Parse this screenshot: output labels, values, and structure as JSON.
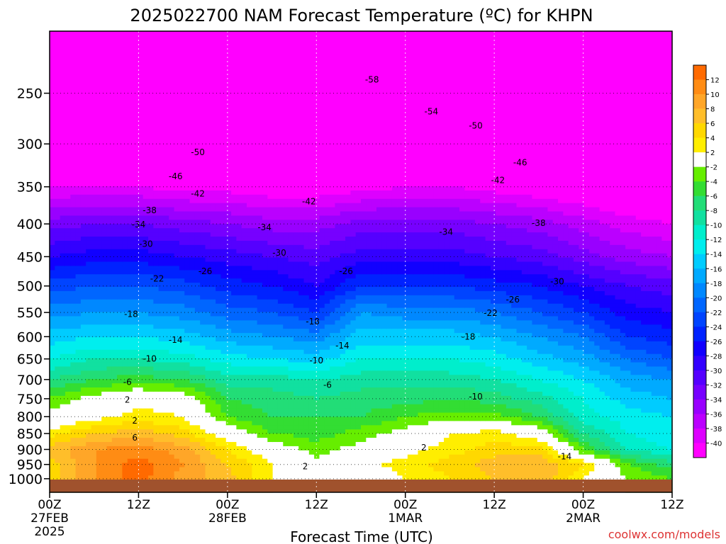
{
  "chart_data": {
    "type": "heatmap",
    "title": "2025022700 NAM Forecast Temperature (ºC) for KHPN",
    "xlabel": "Forecast Time (UTC)",
    "ylabel": "",
    "watermark": "coolwx.com/models",
    "y_scale": "pressure (log)",
    "ylim": [
      1050,
      200
    ],
    "xlim": [
      0,
      84
    ],
    "grid": true,
    "legend": "right colorbar",
    "y_ticks": [
      250,
      300,
      350,
      400,
      450,
      500,
      550,
      600,
      650,
      700,
      750,
      800,
      850,
      900,
      950,
      1000
    ],
    "x_ticks": [
      {
        "hour": 0,
        "lines": [
          "00Z",
          "27FEB",
          "2025"
        ]
      },
      {
        "hour": 12,
        "lines": [
          "12Z"
        ]
      },
      {
        "hour": 24,
        "lines": [
          "00Z",
          "28FEB"
        ]
      },
      {
        "hour": 36,
        "lines": [
          "12Z"
        ]
      },
      {
        "hour": 48,
        "lines": [
          "00Z",
          "1MAR"
        ]
      },
      {
        "hour": 60,
        "lines": [
          "12Z"
        ]
      },
      {
        "hour": 72,
        "lines": [
          "00Z",
          "2MAR"
        ]
      },
      {
        "hour": 84,
        "lines": [
          "12Z"
        ]
      }
    ],
    "colorbar": {
      "labels": [
        "12",
        "10",
        "8",
        "6",
        "4",
        "2",
        "-2",
        "-4",
        "-6",
        "-8",
        "-10",
        "-12",
        "-14",
        "-16",
        "-18",
        "-20",
        "-22",
        "-24",
        "-26",
        "-28",
        "-30",
        "-32",
        "-34",
        "-36",
        "-38",
        "-40"
      ],
      "bins": [
        {
          "lo": 12,
          "hi": 14,
          "color": "#ff6a00"
        },
        {
          "lo": 10,
          "hi": 12,
          "color": "#ff8c14"
        },
        {
          "lo": 8,
          "hi": 10,
          "color": "#ffa628"
        },
        {
          "lo": 6,
          "hi": 8,
          "color": "#ffbe2a"
        },
        {
          "lo": 4,
          "hi": 6,
          "color": "#ffd800"
        },
        {
          "lo": 2,
          "hi": 4,
          "color": "#ffee00"
        },
        {
          "lo": -2,
          "hi": 2,
          "color": "#ffffff"
        },
        {
          "lo": -4,
          "hi": -2,
          "color": "#66ee00"
        },
        {
          "lo": -6,
          "hi": -4,
          "color": "#33dd33"
        },
        {
          "lo": -8,
          "hi": -6,
          "color": "#22dd77"
        },
        {
          "lo": -10,
          "hi": -8,
          "color": "#11e0a0"
        },
        {
          "lo": -12,
          "hi": -10,
          "color": "#00eecc"
        },
        {
          "lo": -14,
          "hi": -12,
          "color": "#00eeee"
        },
        {
          "lo": -16,
          "hi": -14,
          "color": "#00ccff"
        },
        {
          "lo": -18,
          "hi": -16,
          "color": "#00aaff"
        },
        {
          "lo": -20,
          "hi": -18,
          "color": "#0088ff"
        },
        {
          "lo": -22,
          "hi": -20,
          "color": "#0066ff"
        },
        {
          "lo": -24,
          "hi": -22,
          "color": "#0044ff"
        },
        {
          "lo": -26,
          "hi": -24,
          "color": "#0022ff"
        },
        {
          "lo": -28,
          "hi": -26,
          "color": "#1100ff"
        },
        {
          "lo": -30,
          "hi": -28,
          "color": "#3300ff"
        },
        {
          "lo": -32,
          "hi": -30,
          "color": "#5500ff"
        },
        {
          "lo": -34,
          "hi": -32,
          "color": "#7700ff"
        },
        {
          "lo": -36,
          "hi": -34,
          "color": "#9900ff"
        },
        {
          "lo": -38,
          "hi": -36,
          "color": "#bb00ff"
        },
        {
          "lo": -40,
          "hi": -38,
          "color": "#dd00ff"
        },
        {
          "lo": -60,
          "hi": -40,
          "color": "#ff00ff"
        }
      ]
    },
    "ground_color": "#a0522d",
    "contour_color_freezing": "#e8008a",
    "hours": [
      0,
      6,
      12,
      18,
      24,
      30,
      36,
      42,
      48,
      54,
      60,
      66,
      72,
      78,
      84
    ],
    "levels": [
      1000,
      950,
      900,
      850,
      800,
      750,
      700,
      650,
      600,
      550,
      500,
      450,
      400,
      350,
      300,
      250,
      200
    ],
    "temperature": [
      [
        5,
        10,
        13,
        9,
        7,
        2,
        0,
        0,
        2,
        4,
        6,
        8,
        2,
        -2,
        -4
      ],
      [
        5,
        10,
        13,
        10,
        6,
        2,
        -1,
        1,
        3,
        5,
        7,
        8,
        4,
        -4,
        -7
      ],
      [
        7,
        10,
        11,
        9,
        4,
        0,
        -3,
        -1,
        1,
        3,
        5,
        5,
        -4,
        -10,
        -12
      ],
      [
        3,
        6,
        7,
        5,
        0,
        -4,
        -5,
        -3,
        -1,
        2,
        3,
        0,
        -8,
        -12,
        -14
      ],
      [
        -1,
        1,
        3,
        2,
        -4,
        -6,
        -6,
        -6,
        -4,
        -3,
        -3,
        -6,
        -11,
        -13,
        -14
      ],
      [
        -4,
        -1,
        1,
        0,
        -6,
        -7,
        -8,
        -7,
        -7,
        -6,
        -7,
        -9,
        -12,
        -15,
        -16
      ],
      [
        -8,
        -6,
        -5,
        -6,
        -9,
        -9,
        -10,
        -9,
        -9,
        -9,
        -10,
        -12,
        -14,
        -17,
        -18
      ],
      [
        -12,
        -10,
        -10,
        -11,
        -13,
        -14,
        -15,
        -12,
        -12,
        -12,
        -13,
        -15,
        -17,
        -20,
        -22
      ],
      [
        -15,
        -14,
        -14,
        -15,
        -17,
        -18,
        -19,
        -15,
        -15,
        -15,
        -16,
        -18,
        -20,
        -24,
        -25
      ],
      [
        -19,
        -18,
        -18,
        -19,
        -21,
        -22,
        -24,
        -18,
        -19,
        -19,
        -20,
        -22,
        -24,
        -27,
        -28
      ],
      [
        -23,
        -22,
        -22,
        -23,
        -25,
        -26,
        -28,
        -24,
        -24,
        -24,
        -25,
        -26,
        -28,
        -30,
        -31
      ],
      [
        -28,
        -27,
        -27,
        -28,
        -29,
        -30,
        -31,
        -29,
        -29,
        -29,
        -30,
        -31,
        -33,
        -35,
        -36
      ],
      [
        -33,
        -32,
        -32,
        -33,
        -34,
        -35,
        -35,
        -33,
        -33,
        -33,
        -34,
        -35,
        -37,
        -39,
        -40
      ],
      [
        -40,
        -40,
        -40,
        -41,
        -41,
        -42,
        -42,
        -41,
        -40,
        -40,
        -41,
        -42,
        -43,
        -44,
        -44
      ],
      [
        -48,
        -48,
        -48,
        -49,
        -49,
        -49,
        -48,
        -50,
        -52,
        -52,
        -52,
        -51,
        -48,
        -47,
        -47
      ],
      [
        -54,
        -55,
        -55,
        -54,
        -52,
        -50,
        -50,
        -54,
        -57,
        -57,
        -55,
        -53,
        -50,
        -49,
        -49
      ],
      [
        -55,
        -56,
        -56,
        -55,
        -53,
        -51,
        -50,
        -54,
        -57,
        -58,
        -56,
        -54,
        -51,
        -50,
        -50
      ]
    ],
    "contour_labels": [
      {
        "h": 43.5,
        "p": 238,
        "text": "-58"
      },
      {
        "h": 51.5,
        "p": 267,
        "text": "-54"
      },
      {
        "h": 57.5,
        "p": 281,
        "text": "-50"
      },
      {
        "h": 20,
        "p": 309,
        "text": "-50"
      },
      {
        "h": 63.5,
        "p": 321,
        "text": "-46"
      },
      {
        "h": 17,
        "p": 337,
        "text": "-46"
      },
      {
        "h": 60.5,
        "p": 342,
        "text": "-42"
      },
      {
        "h": 20,
        "p": 359,
        "text": "-42"
      },
      {
        "h": 35,
        "p": 369,
        "text": "-42"
      },
      {
        "h": 13.5,
        "p": 381,
        "text": "-38"
      },
      {
        "h": 66,
        "p": 399,
        "text": "-38"
      },
      {
        "h": 12,
        "p": 401,
        "text": "-34"
      },
      {
        "h": 29,
        "p": 405,
        "text": "-34"
      },
      {
        "h": 53.5,
        "p": 412,
        "text": "-34"
      },
      {
        "h": 13,
        "p": 430,
        "text": "-30"
      },
      {
        "h": 31,
        "p": 444,
        "text": "-30"
      },
      {
        "h": 68.5,
        "p": 492,
        "text": "-30"
      },
      {
        "h": 21,
        "p": 474,
        "text": "-26"
      },
      {
        "h": 40,
        "p": 474,
        "text": "-26"
      },
      {
        "h": 62.5,
        "p": 525,
        "text": "-26"
      },
      {
        "h": 14.5,
        "p": 487,
        "text": "-22"
      },
      {
        "h": 59.5,
        "p": 551,
        "text": "-22"
      },
      {
        "h": 11,
        "p": 553,
        "text": "-18"
      },
      {
        "h": 35.5,
        "p": 568,
        "text": "-18"
      },
      {
        "h": 56.5,
        "p": 600,
        "text": "-18"
      },
      {
        "h": 17,
        "p": 607,
        "text": "-14"
      },
      {
        "h": 39.5,
        "p": 620,
        "text": "-14"
      },
      {
        "h": 69.5,
        "p": 923,
        "text": "-14"
      },
      {
        "h": 13.5,
        "p": 650,
        "text": "-10"
      },
      {
        "h": 36,
        "p": 654,
        "text": "-10"
      },
      {
        "h": 57.5,
        "p": 744,
        "text": "-10"
      },
      {
        "h": 10.5,
        "p": 707,
        "text": "-6"
      },
      {
        "h": 37.5,
        "p": 714,
        "text": "-6"
      },
      {
        "h": 10.5,
        "p": 753,
        "text": "2"
      },
      {
        "h": 11.5,
        "p": 812,
        "text": "2"
      },
      {
        "h": 34.5,
        "p": 957,
        "text": "2"
      },
      {
        "h": 50.5,
        "p": 894,
        "text": "2"
      },
      {
        "h": 11.5,
        "p": 863,
        "text": "6"
      }
    ]
  }
}
